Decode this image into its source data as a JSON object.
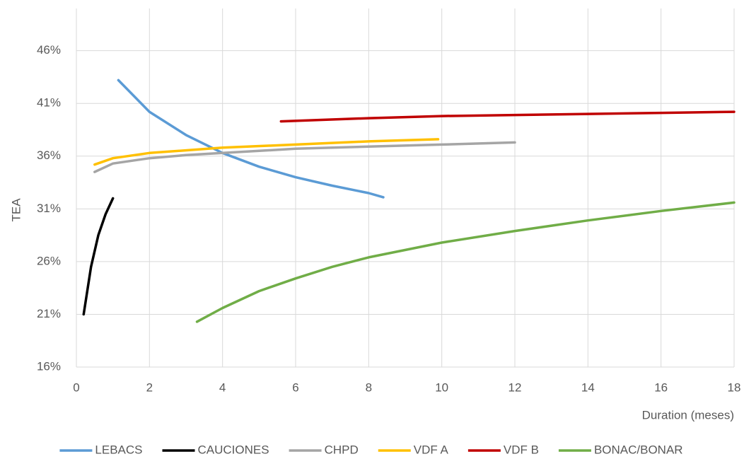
{
  "chart_data": {
    "type": "line",
    "x_label": "Duration (meses)",
    "y_label": "TEA",
    "xlim": [
      0,
      18
    ],
    "xticks": [
      0,
      2,
      4,
      6,
      8,
      10,
      12,
      14,
      16,
      18
    ],
    "ylim": [
      16,
      50
    ],
    "yticks": [
      {
        "value": 16,
        "label": "16%"
      },
      {
        "value": 21,
        "label": "21%"
      },
      {
        "value": 26,
        "label": "26%"
      },
      {
        "value": 31,
        "label": "31%"
      },
      {
        "value": 36,
        "label": "36%"
      },
      {
        "value": 41,
        "label": "41%"
      },
      {
        "value": 46,
        "label": "46%"
      }
    ],
    "grid": true,
    "legend": "bottom",
    "series": [
      {
        "name": "LEBACS",
        "color": "#5b9bd5",
        "x": [
          1.15,
          2,
          3,
          4,
          5,
          6,
          7,
          8,
          8.4
        ],
        "values": [
          43.2,
          40.2,
          38.0,
          36.3,
          35.0,
          34.0,
          33.2,
          32.5,
          32.1
        ]
      },
      {
        "name": "CAUCIONES",
        "color": "#000000",
        "x": [
          0.2,
          0.4,
          0.6,
          0.8,
          1.0
        ],
        "values": [
          21.0,
          25.5,
          28.5,
          30.5,
          32.0
        ]
      },
      {
        "name": "CHPD",
        "color": "#a5a5a5",
        "x": [
          0.5,
          1,
          2,
          3,
          4,
          6,
          8,
          10,
          12
        ],
        "values": [
          34.5,
          35.3,
          35.8,
          36.1,
          36.3,
          36.7,
          36.9,
          37.1,
          37.3
        ]
      },
      {
        "name": "VDF A",
        "color": "#ffc000",
        "x": [
          0.5,
          1,
          2,
          4,
          6,
          8,
          9.9
        ],
        "values": [
          35.2,
          35.8,
          36.3,
          36.8,
          37.1,
          37.4,
          37.6
        ]
      },
      {
        "name": "VDF B",
        "color": "#c00000",
        "x": [
          5.6,
          8,
          10,
          12,
          14,
          16,
          18
        ],
        "values": [
          39.3,
          39.6,
          39.8,
          39.9,
          40.0,
          40.1,
          40.2
        ]
      },
      {
        "name": "BONAC/BONAR",
        "color": "#70ad47",
        "x": [
          3.3,
          4,
          5,
          6,
          7,
          8,
          10,
          12,
          14,
          16,
          18
        ],
        "values": [
          20.3,
          21.6,
          23.2,
          24.4,
          25.5,
          26.4,
          27.8,
          28.9,
          29.9,
          30.8,
          31.6
        ]
      }
    ]
  }
}
